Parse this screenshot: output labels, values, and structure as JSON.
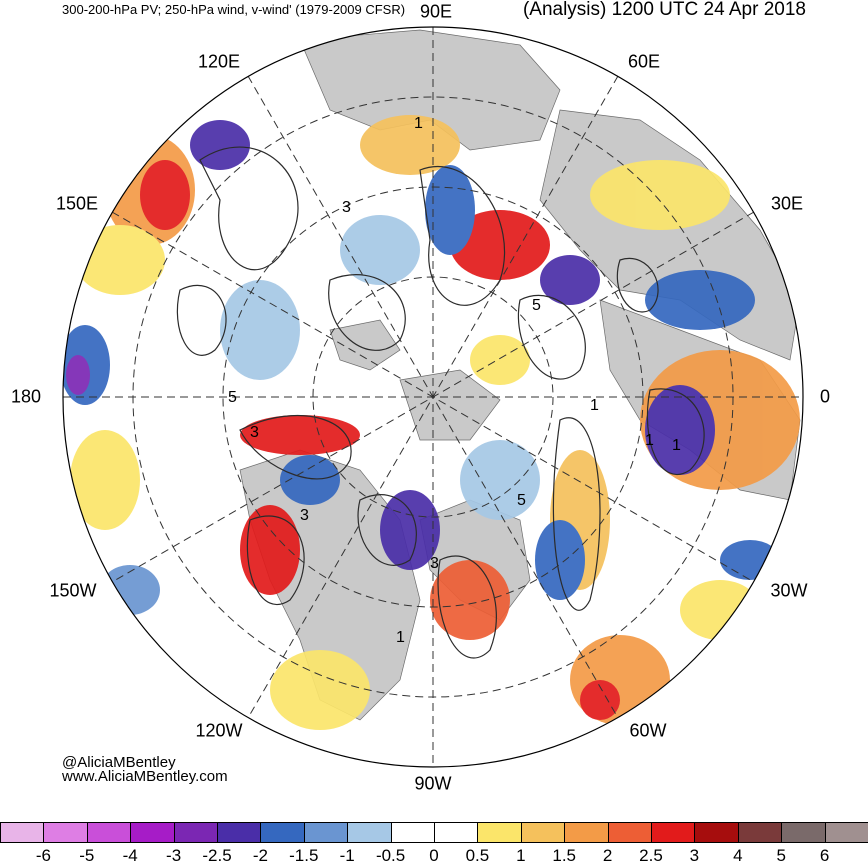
{
  "title": {
    "left": "300-200-hPa PV; 250-hPa wind, v-wind' (1979-2009 CFSR)",
    "right": "(Analysis) 1200 UTC 24 Apr 2018"
  },
  "longitude_labels": [
    "90E",
    "60E",
    "30E",
    "0",
    "30W",
    "60W",
    "90W",
    "120W",
    "150W",
    "180",
    "150E",
    "120E"
  ],
  "contour_labels": [
    "1",
    "3",
    "5",
    "3",
    "1",
    "5",
    "1",
    "3",
    "1",
    "5",
    "3",
    "1"
  ],
  "credit": {
    "handle": "@AliciaMBentley",
    "url": "www.AliciaMBentley.com"
  },
  "colorbar": {
    "ticks": [
      "-6",
      "-5",
      "-4",
      "-3",
      "-2.5",
      "-2",
      "-1.5",
      "-1",
      "-0.5",
      "0",
      "0.5",
      "1",
      "1.5",
      "2",
      "2.5",
      "3",
      "4",
      "5",
      "6"
    ],
    "colors": [
      "#e8b4e8",
      "#de7ee4",
      "#c94fd9",
      "#a61cc7",
      "#7b27b3",
      "#4a2ea8",
      "#3568bf",
      "#6a95d1",
      "#a6c8e6",
      "#ffffff",
      "#ffffff",
      "#fbe56a",
      "#f5c15c",
      "#f39b47",
      "#ed5e35",
      "#e21b1b",
      "#a60d0d",
      "#7a3a3a",
      "#7a6a6a",
      "#a09090"
    ]
  },
  "colors": {
    "land": "#c9c9c9",
    "contour": "#2b2b2b",
    "grid": "#333333"
  }
}
